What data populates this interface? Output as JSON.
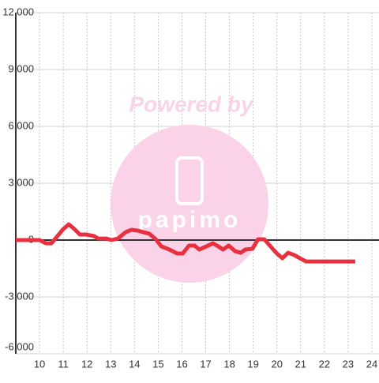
{
  "chart_data": {
    "type": "line",
    "watermark": {
      "caption": "Powered by",
      "logo": "papimo"
    },
    "x": [
      9.0,
      10.0,
      10.27,
      10.5,
      10.73,
      11.0,
      11.23,
      11.47,
      11.7,
      11.97,
      12.3,
      12.47,
      12.8,
      13.03,
      13.3,
      13.63,
      13.87,
      14.13,
      14.37,
      14.63,
      14.9,
      15.13,
      15.47,
      15.8,
      16.03,
      16.3,
      16.53,
      16.73,
      17.03,
      17.3,
      17.53,
      17.73,
      17.97,
      18.23,
      18.47,
      18.67,
      18.97,
      19.2,
      19.47,
      19.7,
      19.97,
      20.23,
      20.47,
      20.73,
      20.97,
      21.23,
      23.3
    ],
    "series": [
      {
        "color": "#e8303f",
        "values": [
          0,
          0,
          -170,
          -170,
          170,
          580,
          830,
          580,
          290,
          290,
          210,
          80,
          80,
          0,
          80,
          420,
          540,
          500,
          420,
          330,
          40,
          -330,
          -500,
          -710,
          -710,
          -290,
          -290,
          -500,
          -330,
          -170,
          -330,
          -500,
          -290,
          -580,
          -670,
          -500,
          -460,
          40,
          40,
          -290,
          -670,
          -960,
          -670,
          -790,
          -960,
          -1130,
          -1130
        ]
      }
    ],
    "xlim": [
      9,
      24.3
    ],
    "xticks": [
      10,
      11,
      12,
      13,
      14,
      15,
      16,
      17,
      18,
      19,
      20,
      21,
      22,
      23,
      24
    ],
    "ylim": [
      -6000,
      12000
    ],
    "yticks": [
      {
        "value": -6000,
        "label": "-6,000"
      },
      {
        "value": -3000,
        "label": "-3,000"
      },
      0,
      {
        "value": 3000,
        "label": "3,000"
      },
      {
        "value": 6000,
        "label": "6,000"
      },
      {
        "value": 9000,
        "label": "9,000"
      },
      {
        "value": 12000,
        "label": "12,000"
      }
    ],
    "grid": true
  }
}
